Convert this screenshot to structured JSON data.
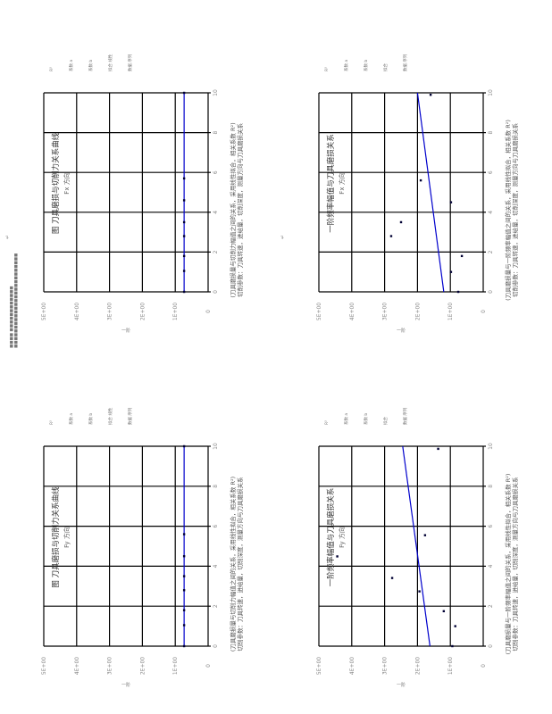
{
  "page": {
    "marker": "↵",
    "header_line1": "■■■■ ■■■■■■■■■■■■",
    "header_line2": "■■■■■■■■■■■■■■■■■■■■■■■■■"
  },
  "colors": {
    "trend": "#0000cc",
    "points": "#000033",
    "grid": "#000000"
  },
  "chart_data": [
    {
      "type": "scatter",
      "title": "图 刀具磨损与切削力关系曲线",
      "subtitle": "Fx 方向",
      "ylabel": "一阶",
      "x_ticks": [
        "0",
        "2",
        "4",
        "6",
        "8",
        "10"
      ],
      "y_ticks": [
        "0",
        "1E+00",
        "2E+00",
        "3E+00",
        "4E+00",
        "5E+00"
      ],
      "xlim": [
        0,
        10
      ],
      "ylim": [
        0,
        5
      ],
      "points": [
        [
          10,
          0.73
        ],
        [
          5.7,
          0.73
        ],
        [
          4.6,
          0.73
        ],
        [
          3.5,
          0.73
        ],
        [
          2.8,
          0.73
        ],
        [
          1.8,
          0.73
        ],
        [
          1.05,
          0.73
        ],
        [
          0,
          0.73
        ]
      ],
      "trend": [
        [
          0,
          0.73
        ],
        [
          10,
          0.73
        ]
      ],
      "legend": [
        "R²",
        "系数 a",
        "系数 b",
        "拟合 线性",
        "数据 序列"
      ],
      "caption": [
        "(刀具磨损量与切削力幅值之间的关系，采用线性拟合，相关系数 R²)",
        "切削参数：刀具转速，进给量，切削深度，测量方向与刀具磨损关系"
      ]
    },
    {
      "type": "scatter",
      "title": "一阶频率幅值与刀具磨损关系",
      "subtitle": "Fx 方向",
      "ylabel": "一阶",
      "x_ticks": [
        "0",
        "2",
        "4",
        "6",
        "8",
        "10"
      ],
      "y_ticks": [
        "0",
        "1E+00",
        "2E+00",
        "3E+00",
        "4E+00",
        "5E+00"
      ],
      "xlim": [
        0,
        10
      ],
      "ylim": [
        0,
        5
      ],
      "points": [
        [
          9.9,
          1.6
        ],
        [
          5.6,
          1.9
        ],
        [
          4.5,
          0.98
        ],
        [
          3.5,
          2.5
        ],
        [
          2.8,
          2.8
        ],
        [
          1.8,
          0.65
        ],
        [
          1.0,
          0.98
        ],
        [
          0,
          0.76
        ]
      ],
      "trend": [
        [
          0,
          1.2
        ],
        [
          10,
          2.0
        ]
      ],
      "legend": [
        "R²",
        "系数 a",
        "系数 b",
        "拟合",
        "数据 序列"
      ],
      "caption": [
        "(刀具磨损量与一阶频率幅值之间的关系，采用线性拟合，相关系数 R²)",
        "切削参数：刀具转速，进给量，切削深度，测量方向与刀具磨损关系"
      ]
    },
    {
      "type": "scatter",
      "title": "图 刀具磨损与切削力关系曲线",
      "subtitle": "Fy 方向",
      "ylabel": "一阶",
      "x_ticks": [
        "0",
        "2",
        "4",
        "6",
        "8",
        "10"
      ],
      "y_ticks": [
        "0",
        "1E+00",
        "2E+00",
        "3E+00",
        "4E+00",
        "5E+00"
      ],
      "xlim": [
        0,
        10
      ],
      "ylim": [
        0,
        5
      ],
      "points": [
        [
          10,
          0.73
        ],
        [
          5.6,
          0.73
        ],
        [
          4.5,
          0.73
        ],
        [
          3.5,
          0.73
        ],
        [
          2.8,
          0.73
        ],
        [
          1.8,
          0.73
        ],
        [
          1.05,
          0.73
        ],
        [
          0,
          0.73
        ]
      ],
      "trend": [
        [
          0,
          0.73
        ],
        [
          10,
          0.73
        ]
      ],
      "legend": [
        "R²",
        "系数 a",
        "系数 b",
        "拟合 线性",
        "数据 序列"
      ],
      "caption": [
        "(刀具磨损量与切削力幅值之间的关系，采用线性拟合，相关系数 R²)",
        "切削参数：刀具转速，进给量，切削深度，测量方向与刀具磨损关系"
      ]
    },
    {
      "type": "scatter",
      "title": "一阶频率幅值与刀具磨损关系",
      "subtitle": "Fy 方向",
      "ylabel": "一阶",
      "x_ticks": [
        "0",
        "2",
        "4",
        "6",
        "8",
        "10"
      ],
      "y_ticks": [
        "0",
        "1E+00",
        "2E+00",
        "3E+00",
        "4E+00",
        "5E+00"
      ],
      "xlim": [
        0,
        10
      ],
      "ylim": [
        0,
        5
      ],
      "points": [
        [
          9.87,
          1.37
        ],
        [
          5.55,
          1.77
        ],
        [
          4.49,
          4.44
        ],
        [
          3.41,
          2.77
        ],
        [
          2.74,
          1.94
        ],
        [
          1.75,
          1.2
        ],
        [
          1.0,
          0.85
        ],
        [
          0,
          0.94
        ]
      ],
      "trend": [
        [
          0,
          1.62
        ],
        [
          10,
          2.45
        ]
      ],
      "legend": [
        "R²",
        "系数 a",
        "系数 b",
        "拟合",
        "数据 序列"
      ],
      "caption": [
        "(刀具磨损量与一阶频率幅值之间的关系，采用线性拟合，相关系数 R²)",
        "切削参数：刀具转速，进给量，切削深度，测量方向与刀具磨损关系"
      ]
    }
  ]
}
